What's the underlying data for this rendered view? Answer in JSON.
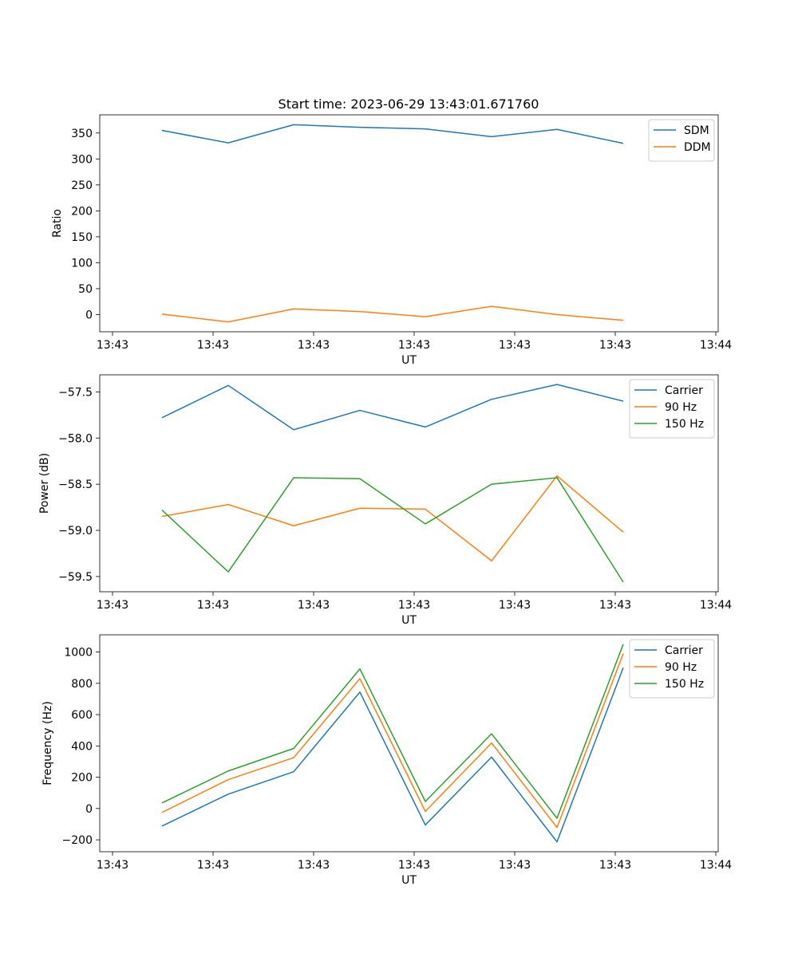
{
  "title": "Start time: 2023-06-29 13:43:01.671760",
  "colors": {
    "c1": "#1f77b4",
    "c2": "#ff7f0e",
    "c3": "#2ca02c"
  },
  "chart_data": [
    {
      "type": "line",
      "xlabel": "UT",
      "ylabel": "Ratio",
      "x_tick_labels": [
        "13:43",
        "13:43",
        "13:43",
        "13:43",
        "13:43",
        "13:43",
        "13:44"
      ],
      "y_ticks": [
        0,
        50,
        100,
        150,
        200,
        250,
        300,
        350
      ],
      "ylim": [
        -33,
        385
      ],
      "legend_position": "top-right",
      "series": [
        {
          "name": "SDM",
          "color": "#1f77b4",
          "values": [
            355,
            331,
            366,
            361,
            358,
            343,
            357,
            330
          ]
        },
        {
          "name": "DDM",
          "color": "#ff7f0e",
          "values": [
            1,
            -14,
            11,
            6,
            -4,
            16,
            0,
            -11
          ]
        }
      ]
    },
    {
      "type": "line",
      "xlabel": "UT",
      "ylabel": "Power (dB)",
      "x_tick_labels": [
        "13:43",
        "13:43",
        "13:43",
        "13:43",
        "13:43",
        "13:43",
        "13:44"
      ],
      "y_ticks": [
        -57.5,
        -58.0,
        -58.5,
        -59.0,
        -59.5
      ],
      "y_tick_labels": [
        "−57.5",
        "−58.0",
        "−58.5",
        "−59.0",
        "−59.5"
      ],
      "ylim": [
        -59.665,
        -57.315
      ],
      "legend_position": "top-right",
      "series": [
        {
          "name": "Carrier",
          "color": "#1f77b4",
          "values": [
            -57.78,
            -57.43,
            -57.91,
            -57.7,
            -57.88,
            -57.58,
            -57.42,
            -57.6
          ]
        },
        {
          "name": "90 Hz",
          "color": "#ff7f0e",
          "values": [
            -58.85,
            -58.72,
            -58.95,
            -58.76,
            -58.77,
            -59.33,
            -58.41,
            -59.02
          ]
        },
        {
          "name": "150 Hz",
          "color": "#2ca02c",
          "values": [
            -58.78,
            -59.45,
            -58.43,
            -58.44,
            -58.93,
            -58.5,
            -58.43,
            -59.56
          ]
        }
      ]
    },
    {
      "type": "line",
      "xlabel": "UT",
      "ylabel": "Frequency (Hz)",
      "x_tick_labels": [
        "13:43",
        "13:43",
        "13:43",
        "13:43",
        "13:43",
        "13:43",
        "13:44"
      ],
      "y_ticks": [
        -200,
        0,
        200,
        400,
        600,
        800,
        1000
      ],
      "y_tick_labels": [
        "−200",
        "0",
        "200",
        "400",
        "600",
        "800",
        "1000"
      ],
      "ylim": [
        -276,
        1110
      ],
      "legend_position": "top-right",
      "series": [
        {
          "name": "Carrier",
          "color": "#1f77b4",
          "values": [
            -112,
            92,
            235,
            744,
            -105,
            329,
            -213,
            900
          ]
        },
        {
          "name": "90 Hz",
          "color": "#ff7f0e",
          "values": [
            -25,
            185,
            325,
            830,
            -18,
            419,
            -121,
            990
          ]
        },
        {
          "name": "150 Hz",
          "color": "#2ca02c",
          "values": [
            36,
            240,
            384,
            892,
            45,
            478,
            -62,
            1050
          ]
        }
      ]
    }
  ]
}
